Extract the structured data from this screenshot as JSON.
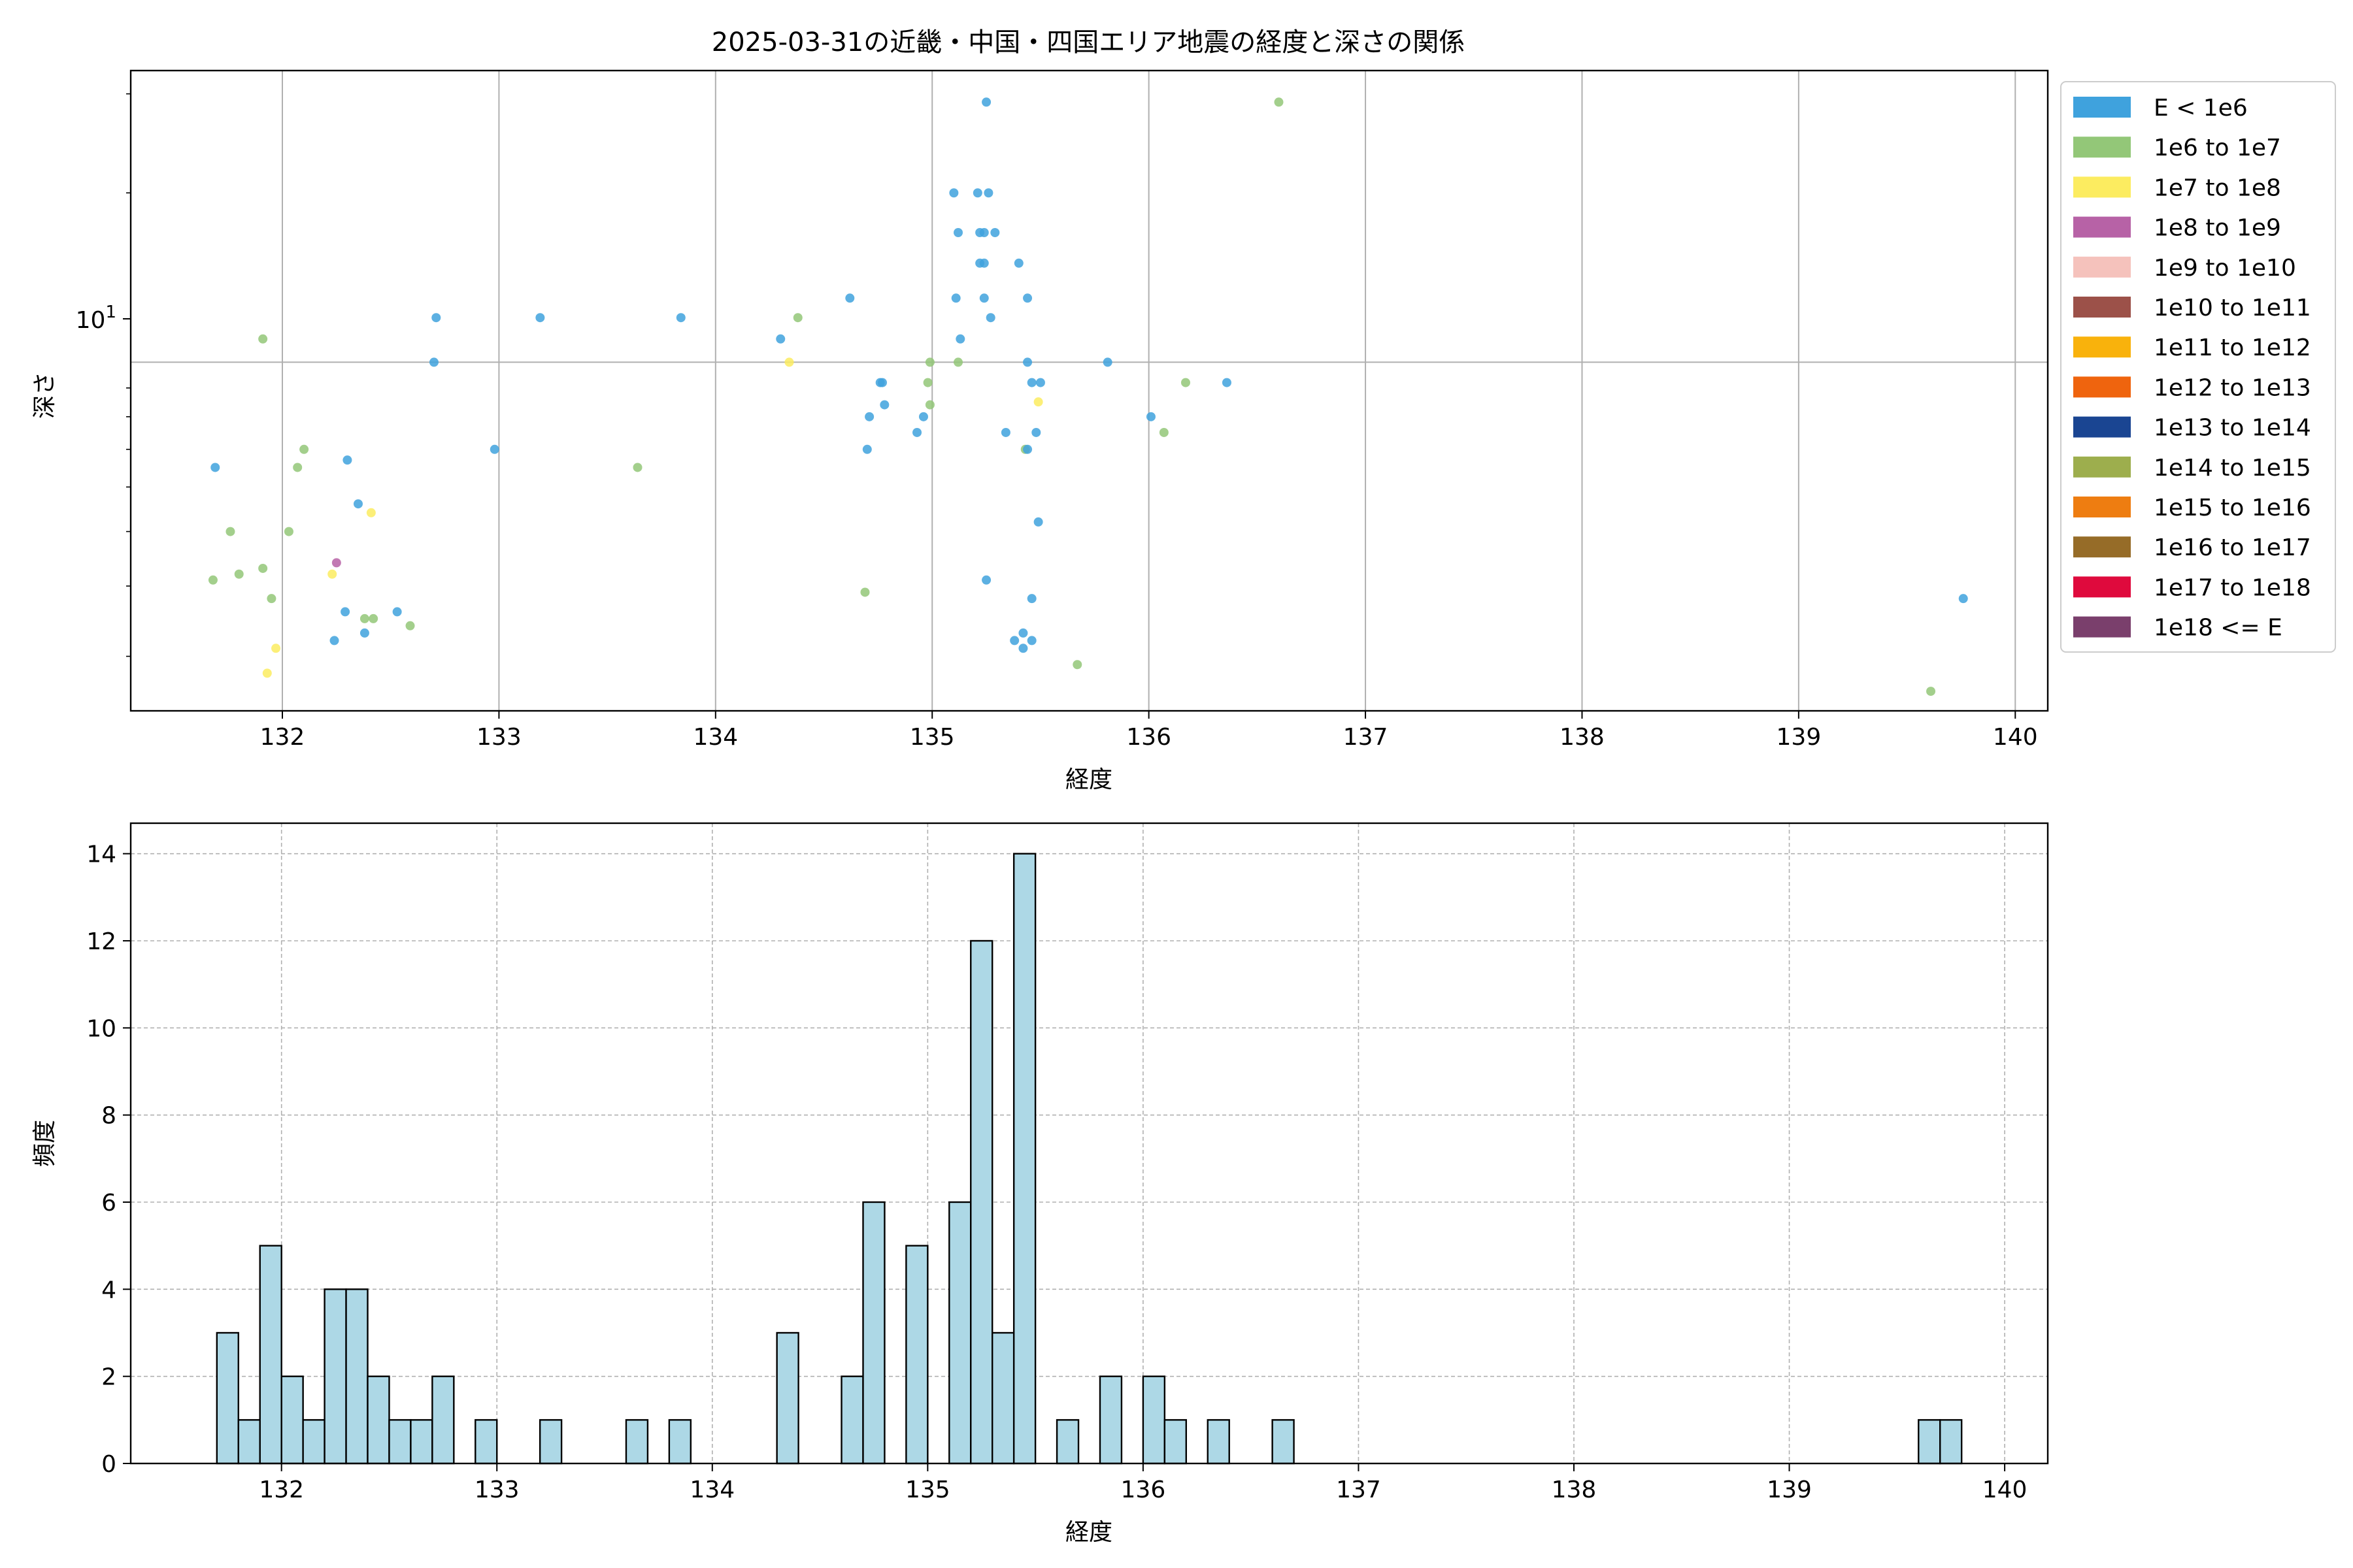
{
  "chart_data": [
    {
      "type": "scatter",
      "title": "2025-03-31の近畿・中国・四国エリア地震の経度と深さの関係",
      "xlabel": "経度",
      "ylabel": "深さ",
      "xlim": [
        131.3,
        140.15
      ],
      "ylim": [
        2.4,
        33
      ],
      "yscale": "log",
      "grid": true,
      "x_ticks": [
        "132",
        "133",
        "134",
        "135",
        "136",
        "137",
        "138",
        "139",
        "140"
      ],
      "y_ticks": [
        "10^1"
      ],
      "y_tick_base": "10",
      "y_tick_exp": "1",
      "legend_position": "outside-right",
      "legend": [
        {
          "label": "E < 1e6",
          "color": "#3fa2dd"
        },
        {
          "label": "1e6 to 1e7",
          "color": "#93c778"
        },
        {
          "label": "1e7 to 1e8",
          "color": "#fcec60"
        },
        {
          "label": "1e8 to 1e9",
          "color": "#b762a6"
        },
        {
          "label": "1e9 to 1e10",
          "color": "#f5c2bc"
        },
        {
          "label": "1e10 to 1e11",
          "color": "#9c5149"
        },
        {
          "label": "1e11 to 1e12",
          "color": "#f9b20c"
        },
        {
          "label": "1e12 to 1e13",
          "color": "#ef640e"
        },
        {
          "label": "1e13 to 1e14",
          "color": "#1a4592"
        },
        {
          "label": "1e14 to 1e15",
          "color": "#9dae4d"
        },
        {
          "label": "1e15 to 1e16",
          "color": "#ee7d11"
        },
        {
          "label": "1e16 to 1e17",
          "color": "#966c28"
        },
        {
          "label": "1e17 to 1e18",
          "color": "#df0a3d"
        },
        {
          "label": "1e18 <= E",
          "color": "#7a3f6c"
        }
      ],
      "points": [
        {
          "x": 131.69,
          "y": 6.5,
          "c": 0
        },
        {
          "x": 131.68,
          "y": 4.1,
          "c": 1
        },
        {
          "x": 131.76,
          "y": 5.0,
          "c": 1
        },
        {
          "x": 131.8,
          "y": 4.2,
          "c": 1
        },
        {
          "x": 131.91,
          "y": 11.0,
          "c": 1
        },
        {
          "x": 131.91,
          "y": 4.3,
          "c": 1
        },
        {
          "x": 131.93,
          "y": 2.8,
          "c": 2
        },
        {
          "x": 131.95,
          "y": 3.8,
          "c": 1
        },
        {
          "x": 131.97,
          "y": 3.1,
          "c": 2
        },
        {
          "x": 132.03,
          "y": 5.0,
          "c": 1
        },
        {
          "x": 132.07,
          "y": 6.5,
          "c": 1
        },
        {
          "x": 132.1,
          "y": 7.0,
          "c": 1
        },
        {
          "x": 132.23,
          "y": 4.2,
          "c": 2
        },
        {
          "x": 132.24,
          "y": 3.2,
          "c": 0
        },
        {
          "x": 132.25,
          "y": 4.4,
          "c": 3
        },
        {
          "x": 132.29,
          "y": 3.6,
          "c": 0
        },
        {
          "x": 132.3,
          "y": 6.7,
          "c": 0
        },
        {
          "x": 132.35,
          "y": 5.6,
          "c": 0
        },
        {
          "x": 132.38,
          "y": 3.3,
          "c": 0
        },
        {
          "x": 132.38,
          "y": 3.5,
          "c": 1
        },
        {
          "x": 132.41,
          "y": 5.4,
          "c": 2
        },
        {
          "x": 132.42,
          "y": 3.5,
          "c": 1
        },
        {
          "x": 132.53,
          "y": 3.6,
          "c": 0
        },
        {
          "x": 132.59,
          "y": 3.4,
          "c": 1
        },
        {
          "x": 132.7,
          "y": 10.0,
          "c": 0
        },
        {
          "x": 132.71,
          "y": 12.0,
          "c": 0
        },
        {
          "x": 132.98,
          "y": 7.0,
          "c": 0
        },
        {
          "x": 133.19,
          "y": 12.0,
          "c": 0
        },
        {
          "x": 133.64,
          "y": 6.5,
          "c": 1
        },
        {
          "x": 133.84,
          "y": 12.0,
          "c": 0
        },
        {
          "x": 134.3,
          "y": 11.0,
          "c": 0
        },
        {
          "x": 134.34,
          "y": 10.0,
          "c": 2
        },
        {
          "x": 134.38,
          "y": 12.0,
          "c": 1
        },
        {
          "x": 134.62,
          "y": 13.0,
          "c": 0
        },
        {
          "x": 134.69,
          "y": 3.9,
          "c": 1
        },
        {
          "x": 134.7,
          "y": 7.0,
          "c": 0
        },
        {
          "x": 134.71,
          "y": 8.0,
          "c": 0
        },
        {
          "x": 134.76,
          "y": 9.2,
          "c": 0
        },
        {
          "x": 134.77,
          "y": 9.2,
          "c": 0
        },
        {
          "x": 134.78,
          "y": 8.4,
          "c": 0
        },
        {
          "x": 134.93,
          "y": 7.5,
          "c": 0
        },
        {
          "x": 134.96,
          "y": 8.0,
          "c": 0
        },
        {
          "x": 134.98,
          "y": 9.2,
          "c": 1
        },
        {
          "x": 134.99,
          "y": 10.0,
          "c": 1
        },
        {
          "x": 134.99,
          "y": 8.4,
          "c": 1
        },
        {
          "x": 135.1,
          "y": 20.0,
          "c": 0
        },
        {
          "x": 135.11,
          "y": 13.0,
          "c": 0
        },
        {
          "x": 135.12,
          "y": 17.0,
          "c": 0
        },
        {
          "x": 135.12,
          "y": 10.0,
          "c": 1
        },
        {
          "x": 135.13,
          "y": 11.0,
          "c": 0
        },
        {
          "x": 135.21,
          "y": 20.0,
          "c": 0
        },
        {
          "x": 135.22,
          "y": 17.0,
          "c": 0
        },
        {
          "x": 135.22,
          "y": 15.0,
          "c": 0
        },
        {
          "x": 135.24,
          "y": 17.0,
          "c": 0
        },
        {
          "x": 135.24,
          "y": 15.0,
          "c": 0
        },
        {
          "x": 135.24,
          "y": 13.0,
          "c": 0
        },
        {
          "x": 135.25,
          "y": 29.0,
          "c": 0
        },
        {
          "x": 135.25,
          "y": 4.1,
          "c": 0
        },
        {
          "x": 135.26,
          "y": 20.0,
          "c": 0
        },
        {
          "x": 135.27,
          "y": 12.0,
          "c": 0
        },
        {
          "x": 135.29,
          "y": 17.0,
          "c": 0
        },
        {
          "x": 135.34,
          "y": 7.5,
          "c": 0
        },
        {
          "x": 135.38,
          "y": 3.2,
          "c": 0
        },
        {
          "x": 135.4,
          "y": 15.0,
          "c": 0
        },
        {
          "x": 135.42,
          "y": 3.3,
          "c": 0
        },
        {
          "x": 135.42,
          "y": 3.1,
          "c": 0
        },
        {
          "x": 135.43,
          "y": 7.0,
          "c": 1
        },
        {
          "x": 135.44,
          "y": 7.0,
          "c": 0
        },
        {
          "x": 135.44,
          "y": 10.0,
          "c": 0
        },
        {
          "x": 135.44,
          "y": 13.0,
          "c": 0
        },
        {
          "x": 135.46,
          "y": 3.8,
          "c": 0
        },
        {
          "x": 135.46,
          "y": 3.2,
          "c": 0
        },
        {
          "x": 135.46,
          "y": 9.2,
          "c": 0
        },
        {
          "x": 135.48,
          "y": 7.5,
          "c": 0
        },
        {
          "x": 135.49,
          "y": 5.2,
          "c": 0
        },
        {
          "x": 135.49,
          "y": 8.5,
          "c": 2
        },
        {
          "x": 135.5,
          "y": 9.2,
          "c": 0
        },
        {
          "x": 135.67,
          "y": 2.9,
          "c": 1
        },
        {
          "x": 135.81,
          "y": 10.0,
          "c": 0
        },
        {
          "x": 136.01,
          "y": 8.0,
          "c": 0
        },
        {
          "x": 136.07,
          "y": 7.5,
          "c": 1
        },
        {
          "x": 136.17,
          "y": 9.2,
          "c": 1
        },
        {
          "x": 136.36,
          "y": 9.2,
          "c": 0
        },
        {
          "x": 136.6,
          "y": 29.0,
          "c": 1
        },
        {
          "x": 139.61,
          "y": 2.6,
          "c": 1
        },
        {
          "x": 139.76,
          "y": 3.8,
          "c": 0
        }
      ]
    },
    {
      "type": "bar",
      "xlabel": "経度",
      "ylabel": "頻度",
      "xlim": [
        131.3,
        140.2
      ],
      "ylim": [
        0,
        14.7
      ],
      "grid": true,
      "bar_color": "#add8e6",
      "bin_width": 0.1,
      "x_ticks": [
        "132",
        "133",
        "134",
        "135",
        "136",
        "137",
        "138",
        "139",
        "140"
      ],
      "y_ticks": [
        "0",
        "2",
        "4",
        "6",
        "8",
        "10",
        "12",
        "14"
      ],
      "bins": [
        {
          "x": 131.7,
          "count": 3
        },
        {
          "x": 131.8,
          "count": 1
        },
        {
          "x": 131.9,
          "count": 5
        },
        {
          "x": 132.0,
          "count": 2
        },
        {
          "x": 132.1,
          "count": 1
        },
        {
          "x": 132.2,
          "count": 4
        },
        {
          "x": 132.3,
          "count": 4
        },
        {
          "x": 132.4,
          "count": 2
        },
        {
          "x": 132.5,
          "count": 1
        },
        {
          "x": 132.6,
          "count": 1
        },
        {
          "x": 132.7,
          "count": 2
        },
        {
          "x": 132.9,
          "count": 1
        },
        {
          "x": 133.2,
          "count": 1
        },
        {
          "x": 133.6,
          "count": 1
        },
        {
          "x": 133.8,
          "count": 1
        },
        {
          "x": 134.3,
          "count": 3
        },
        {
          "x": 134.6,
          "count": 2
        },
        {
          "x": 134.7,
          "count": 6
        },
        {
          "x": 134.9,
          "count": 5
        },
        {
          "x": 135.1,
          "count": 6
        },
        {
          "x": 135.2,
          "count": 12
        },
        {
          "x": 135.3,
          "count": 3
        },
        {
          "x": 135.4,
          "count": 14
        },
        {
          "x": 135.6,
          "count": 1
        },
        {
          "x": 135.8,
          "count": 2
        },
        {
          "x": 136.0,
          "count": 2
        },
        {
          "x": 136.1,
          "count": 1
        },
        {
          "x": 136.3,
          "count": 1
        },
        {
          "x": 136.6,
          "count": 1
        },
        {
          "x": 139.6,
          "count": 1
        },
        {
          "x": 139.7,
          "count": 1
        }
      ]
    }
  ]
}
